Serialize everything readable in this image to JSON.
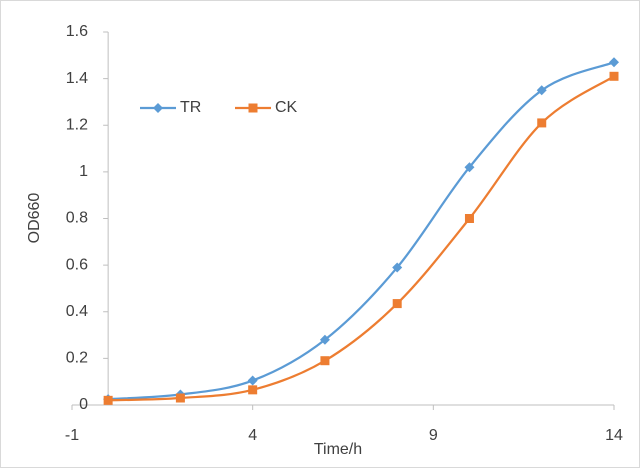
{
  "chart_data": {
    "type": "line",
    "smooth": true,
    "x_label": "Time/h",
    "y_label": "OD660",
    "x": [
      0,
      2,
      4,
      6,
      8,
      10,
      12,
      14
    ],
    "series": [
      {
        "name": "TR",
        "color": "#5b9bd5",
        "marker": "diamond",
        "values": [
          0.025,
          0.045,
          0.105,
          0.28,
          0.59,
          1.02,
          1.35,
          1.47
        ]
      },
      {
        "name": "CK",
        "color": "#ed7d31",
        "marker": "square",
        "values": [
          0.02,
          0.03,
          0.065,
          0.19,
          0.435,
          0.8,
          1.21,
          1.41
        ]
      }
    ],
    "xlim": [
      -1,
      14
    ],
    "xticks": [
      -1,
      4,
      9,
      14
    ],
    "ylim": [
      0,
      1.6
    ],
    "yticks": [
      0,
      0.2,
      0.4,
      0.6,
      0.8,
      1,
      1.2,
      1.4,
      1.6
    ],
    "y_axis_crosses_x": 0,
    "grid": false,
    "legend": "upper left"
  }
}
